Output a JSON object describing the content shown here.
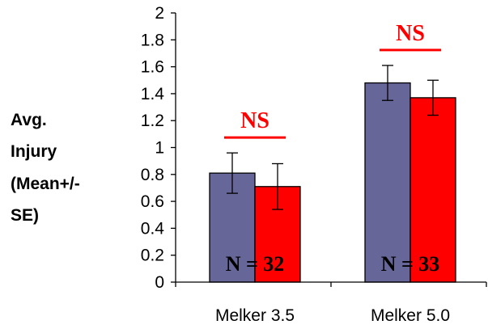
{
  "chart_data": {
    "type": "bar",
    "categories": [
      "Melker 3.5",
      "Melker 5.0"
    ],
    "series": [
      {
        "values": [
          0.81,
          1.48
        ],
        "errors": [
          0.15,
          0.13
        ],
        "color": "#666699"
      },
      {
        "values": [
          0.71,
          1.37
        ],
        "errors": [
          0.17,
          0.13
        ],
        "color": "#ff0000"
      }
    ],
    "ylabel_lines": [
      "Avg.",
      "Injury",
      "(Mean+/-",
      "SE)"
    ],
    "ylim": [
      0,
      2
    ],
    "yticks": [
      "0",
      "0.2",
      "0.4",
      "0.6",
      "0.8",
      "1",
      "1.2",
      "1.4",
      "1.6",
      "1.8",
      "2"
    ],
    "significance": [
      "NS",
      "NS"
    ],
    "sample_sizes": [
      "N = 32",
      "N = 33"
    ],
    "grid": false,
    "legend": "none"
  }
}
